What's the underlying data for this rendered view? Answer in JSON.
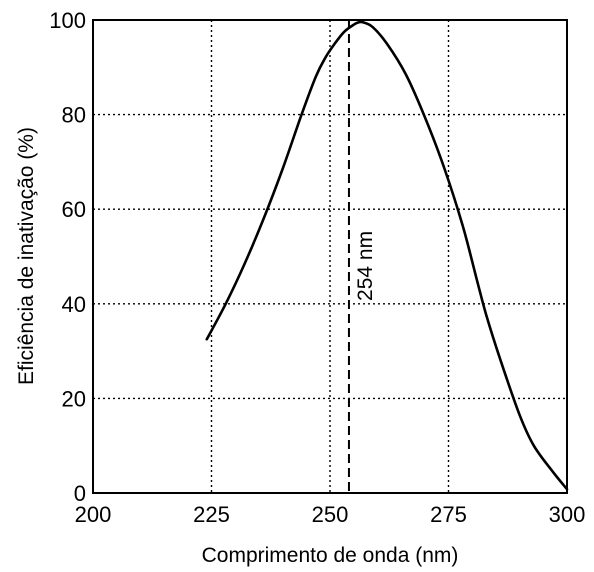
{
  "chart_data": {
    "type": "line",
    "xlabel": "Comprimento de onda (nm)",
    "ylabel": "Eficiência de inativação (%)",
    "xlim": [
      200,
      300
    ],
    "ylim": [
      0,
      100
    ],
    "xticks": [
      200,
      225,
      250,
      275,
      300
    ],
    "yticks": [
      0,
      20,
      40,
      60,
      80,
      100
    ],
    "grid": true,
    "grid_style": "dotted",
    "series": [
      {
        "x": [
          224,
          228,
          232,
          236,
          240,
          244,
          247,
          249,
          251,
          253,
          255,
          256,
          257,
          259,
          262,
          266,
          270,
          274,
          278,
          281,
          283,
          286,
          290,
          293,
          297,
          300
        ],
        "y": [
          32.5,
          40,
          48.5,
          58,
          68.5,
          80,
          88,
          92,
          95,
          97.5,
          99,
          99.5,
          99.5,
          98.5,
          95,
          88.5,
          79.5,
          69,
          56.5,
          45,
          37.5,
          28,
          16.5,
          10,
          4.5,
          0.8
        ],
        "color": "#000000"
      }
    ],
    "annotations": [
      {
        "type": "vline",
        "x": 254,
        "style": "dashed",
        "text": "254 nm"
      }
    ]
  }
}
